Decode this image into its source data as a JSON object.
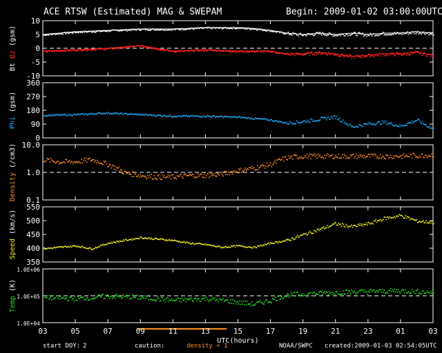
{
  "header": {
    "title": "ACE RTSW (Estimated) MAG & SWEPAM",
    "begin": "Begin: 2009-01-02 03:00:00UTC"
  },
  "xaxis": {
    "ticks": [
      "03",
      "05",
      "07",
      "09",
      "11",
      "13",
      "15",
      "17",
      "19",
      "21",
      "23",
      "01",
      "03"
    ],
    "start_hour": 3,
    "span_hours": 24,
    "label": "UTC(hours)"
  },
  "footer": {
    "start_doy_label": "start DOY:",
    "start_doy": "2",
    "caution": "caution:",
    "density_note": "density < 1",
    "source": "NOAA/SWPC",
    "created": "created:2009-01-03 02:54:05UTC"
  },
  "colors": {
    "bt": "#ffffff",
    "bz": "#ff2020",
    "phi": "#20b0ff",
    "density": "#ff9020",
    "speed": "#f0f020",
    "temp": "#20e020",
    "caution_bar": "#ff9020",
    "frame": "#ffffff"
  },
  "chart_data": [
    {
      "type": "scatter",
      "ylabel_parts": [
        "Bt",
        "Bz",
        "(gsm)"
      ],
      "yscale": "linear",
      "ylim": [
        -10,
        10
      ],
      "yticks": [
        "10",
        "5",
        "0",
        "-5",
        "-10"
      ],
      "ytick_values": [
        10,
        5,
        0,
        -5,
        -10
      ],
      "reference": 0,
      "series": [
        {
          "name": "Bt",
          "x": [
            0,
            2,
            4,
            6,
            8,
            10,
            12,
            13,
            14,
            15,
            16,
            17,
            18,
            19,
            20,
            21,
            22,
            23,
            24
          ],
          "values": [
            5,
            6,
            6.5,
            7,
            7,
            7.5,
            7.5,
            7.2,
            6.5,
            5.5,
            5,
            5.5,
            5,
            5.5,
            5,
            5.5,
            5.5,
            6,
            5.5
          ]
        },
        {
          "name": "Bz",
          "x": [
            0,
            2,
            4,
            6,
            8,
            10,
            12,
            13,
            14,
            15,
            16,
            17,
            18,
            19,
            20,
            21,
            22,
            23,
            24
          ],
          "values": [
            -1,
            -0.5,
            0,
            1,
            -1,
            -0.5,
            -1,
            -1,
            -1,
            -2,
            -2,
            -1.5,
            -2,
            -3,
            -2.5,
            -2,
            -2,
            -1.5,
            -2.5
          ]
        }
      ]
    },
    {
      "type": "scatter",
      "ylabel_parts": [
        "Phi",
        "(gsm)"
      ],
      "yscale": "linear",
      "ylim": [
        0,
        360
      ],
      "yticks": [
        "360",
        "270",
        "180",
        "90",
        "0"
      ],
      "ytick_values": [
        360,
        270,
        180,
        90,
        0
      ],
      "series": [
        {
          "name": "Phi",
          "x": [
            0,
            2,
            4,
            6,
            8,
            10,
            12,
            13,
            14,
            15,
            16,
            17,
            18,
            19,
            20,
            21,
            22,
            23,
            24
          ],
          "values": [
            150,
            155,
            165,
            155,
            145,
            145,
            138,
            130,
            120,
            100,
            110,
            125,
            140,
            75,
            95,
            105,
            80,
            120,
            60
          ]
        }
      ]
    },
    {
      "type": "scatter",
      "ylabel_parts": [
        "Density",
        "(/cm3)"
      ],
      "yscale": "log",
      "ylim": [
        0.1,
        10
      ],
      "yticks": [
        "10.0",
        "1.0",
        "0.1"
      ],
      "ytick_values": [
        10,
        1,
        0.1
      ],
      "reference": 1,
      "series": [
        {
          "name": "Density",
          "x": [
            0,
            1,
            2,
            3,
            4,
            5,
            6,
            7,
            8,
            9,
            10,
            11,
            12,
            13,
            14,
            15,
            16,
            18,
            20,
            22,
            24
          ],
          "values": [
            3,
            2.5,
            2.5,
            3,
            2,
            1,
            0.8,
            0.7,
            0.7,
            0.8,
            0.8,
            0.9,
            1.2,
            1.5,
            2,
            3.5,
            4,
            4,
            4,
            4,
            4.5
          ]
        }
      ]
    },
    {
      "type": "scatter",
      "ylabel_parts": [
        "Speed",
        "(km/s)"
      ],
      "yscale": "linear",
      "ylim": [
        350,
        550
      ],
      "yticks": [
        "550",
        "500",
        "450",
        "400",
        "350"
      ],
      "ytick_values": [
        550,
        500,
        450,
        400,
        350
      ],
      "series": [
        {
          "name": "Speed",
          "x": [
            0,
            1,
            2,
            3,
            4,
            5,
            6,
            7,
            8,
            9,
            10,
            11,
            12,
            13,
            14,
            15,
            16,
            17,
            18,
            19,
            20,
            21,
            22,
            23,
            24
          ],
          "values": [
            400,
            405,
            410,
            400,
            420,
            430,
            440,
            435,
            430,
            420,
            415,
            405,
            410,
            405,
            420,
            430,
            450,
            470,
            490,
            480,
            490,
            510,
            520,
            500,
            495
          ]
        }
      ]
    },
    {
      "type": "scatter",
      "ylabel_parts": [
        "Temp",
        "(K)"
      ],
      "yscale": "log",
      "ylim": [
        10000,
        1000000
      ],
      "yticks": [
        "1.0E+06",
        "1.0E+05",
        "1.0E+04"
      ],
      "ytick_values": [
        1000000,
        100000,
        10000
      ],
      "reference": 100000,
      "series": [
        {
          "name": "Temp",
          "x": [
            0,
            2,
            4,
            6,
            8,
            10,
            12,
            13,
            14,
            15,
            16,
            18,
            20,
            22,
            24
          ],
          "values": [
            90000,
            80000,
            100000,
            90000,
            70000,
            80000,
            60000,
            50000,
            70000,
            110000,
            120000,
            140000,
            150000,
            160000,
            140000
          ]
        }
      ]
    }
  ]
}
